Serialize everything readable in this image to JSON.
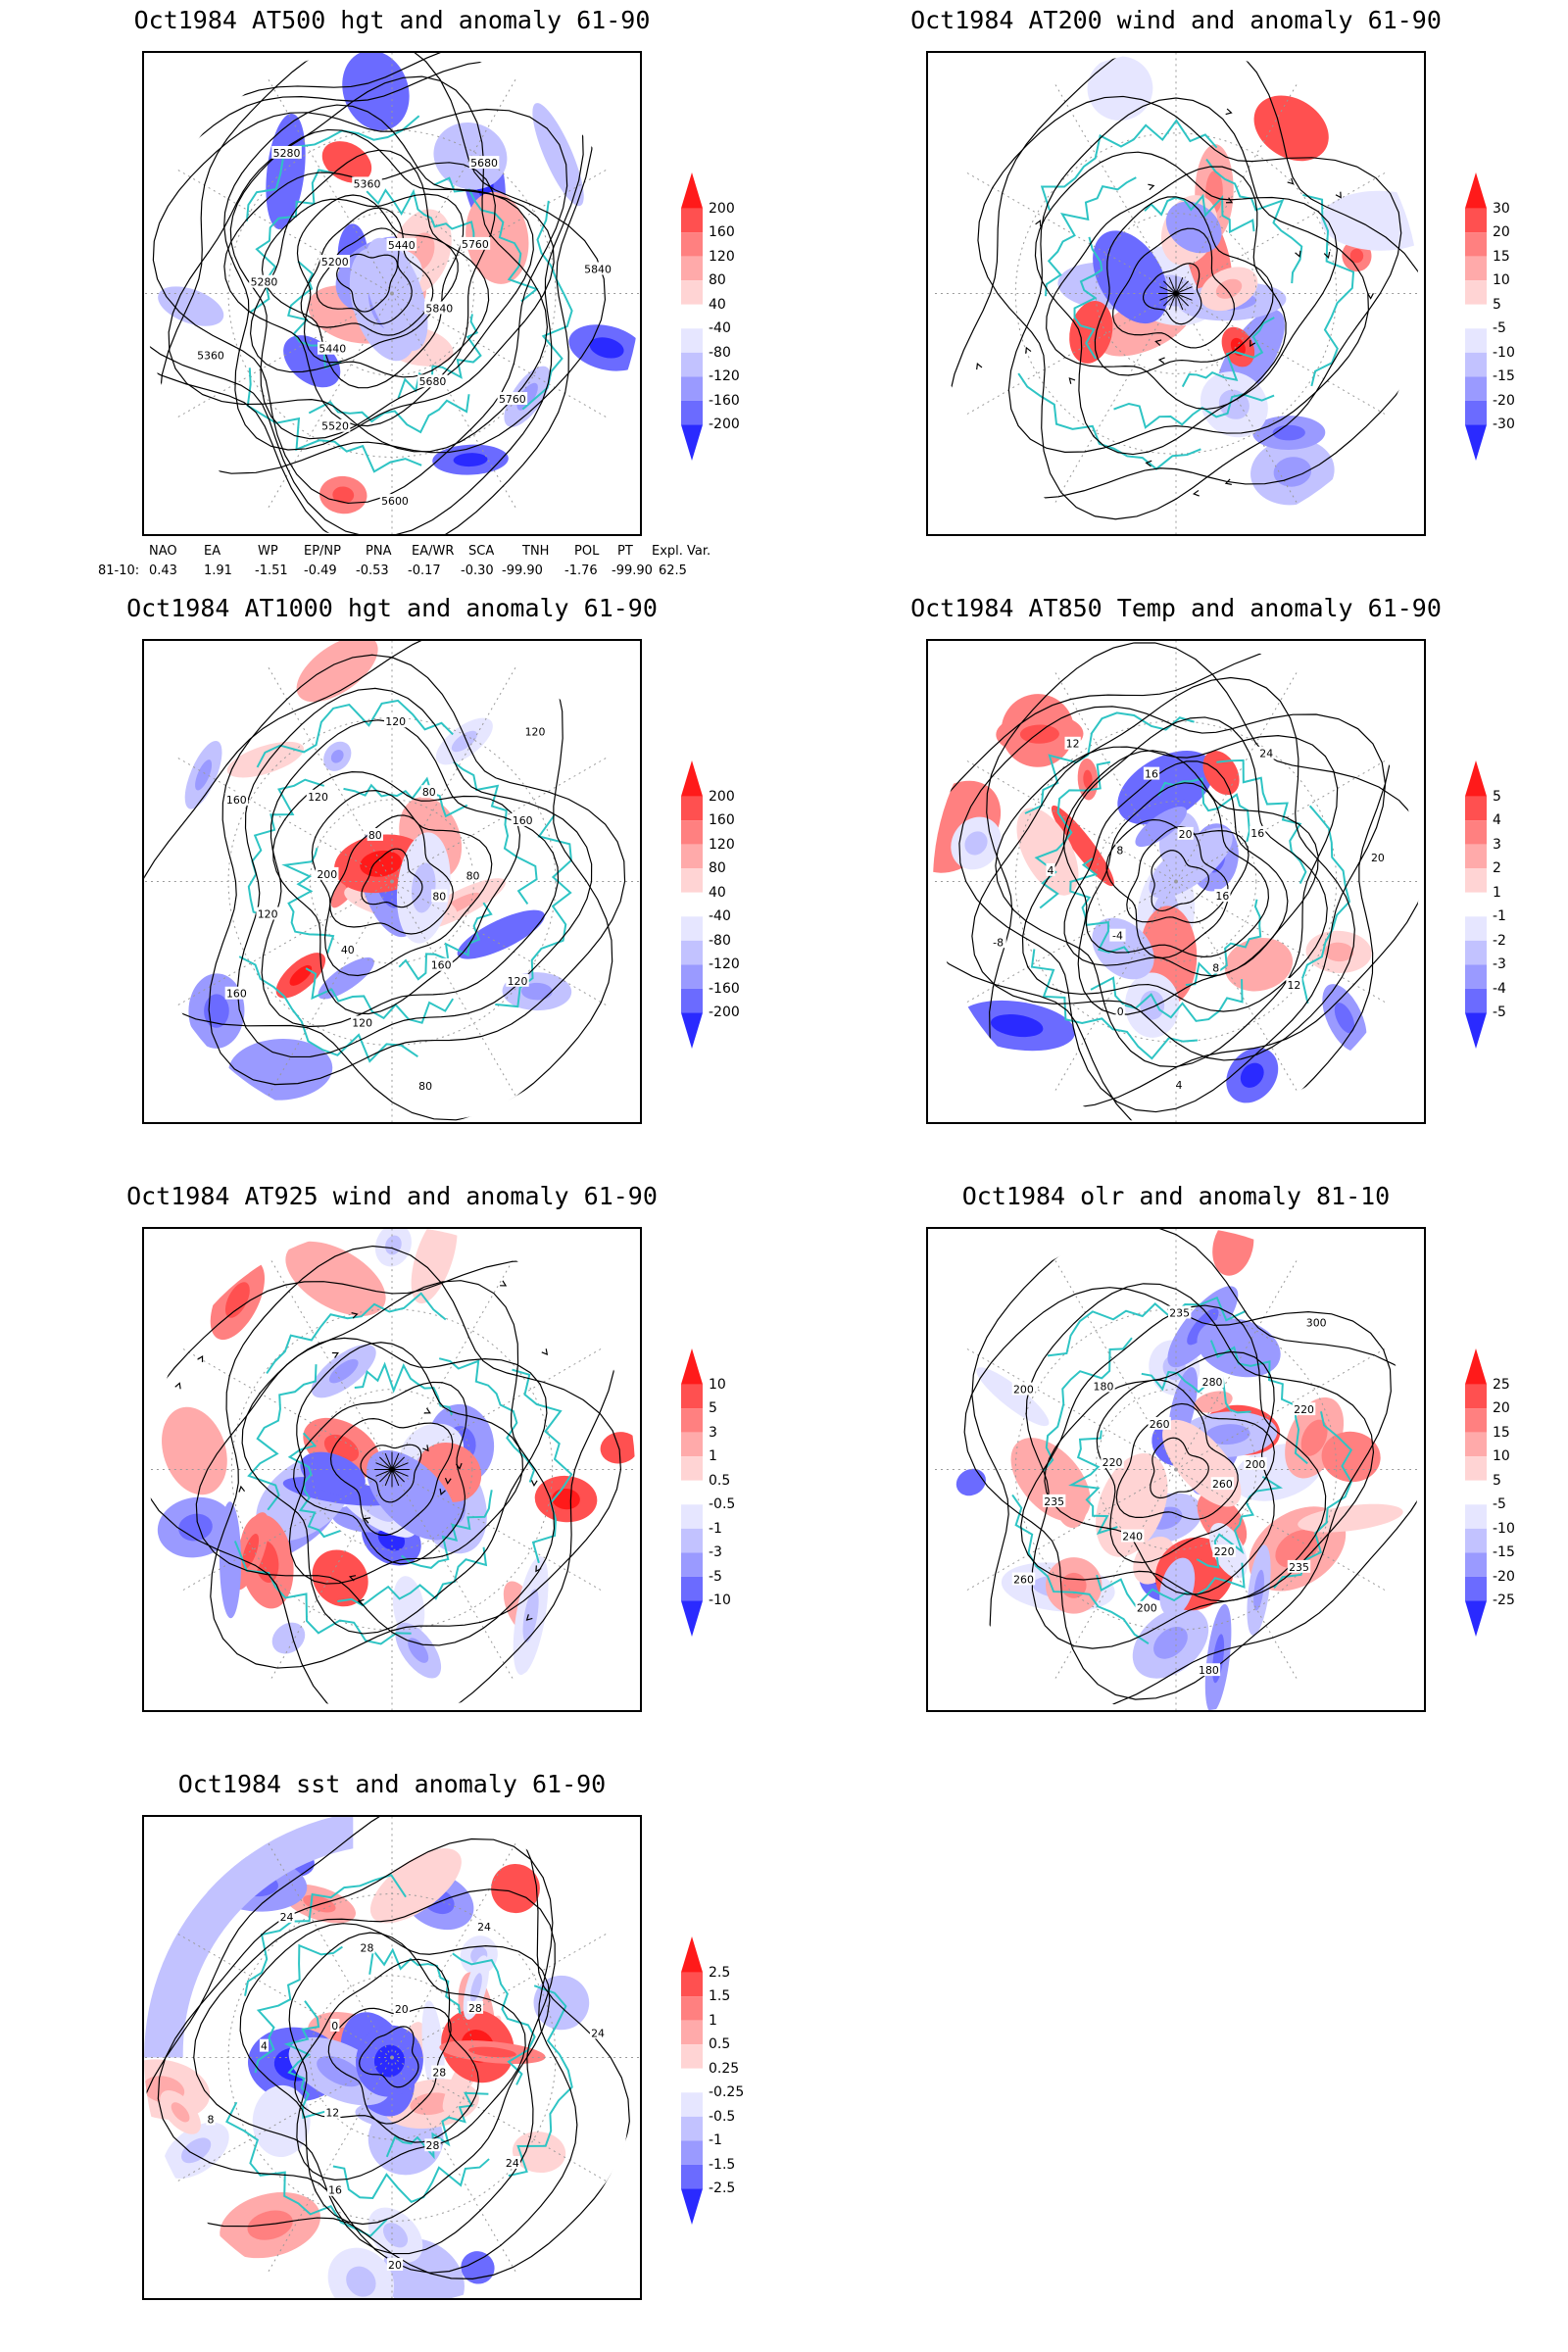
{
  "panels": [
    {
      "id": "at500",
      "title": "Oct1984 AT500 hgt and anomaly 61-90",
      "colorbar": [
        "200",
        "160",
        "120",
        "80",
        "40",
        "-40",
        "-80",
        "-120",
        "-160",
        "-200"
      ],
      "contour_labels": [
        "5840",
        "5760",
        "5680",
        "5600",
        "5520",
        "5440",
        "5360",
        "5280",
        "5200",
        "5280",
        "5360",
        "5440",
        "5680",
        "5760",
        "5840"
      ]
    },
    {
      "id": "at200",
      "title": "Oct1984 AT200 wind and anomaly 61-90",
      "colorbar": [
        "30",
        "20",
        "15",
        "10",
        "5",
        "-5",
        "-10",
        "-15",
        "-20",
        "-30"
      ],
      "contour_labels": []
    },
    {
      "id": "at1000",
      "title": "Oct1984 AT1000 hgt and anomaly 61-90",
      "colorbar": [
        "200",
        "160",
        "120",
        "80",
        "40",
        "-40",
        "-80",
        "-120",
        "-160",
        "-200"
      ],
      "contour_labels": [
        "80",
        "120",
        "160",
        "80",
        "120",
        "40",
        "160",
        "120",
        "200",
        "160",
        "120",
        "80",
        "120",
        "80",
        "120",
        "160",
        "80"
      ]
    },
    {
      "id": "at850",
      "title": "Oct1984 AT850 Temp and anomaly 61-90",
      "colorbar": [
        "5",
        "4",
        "3",
        "2",
        "1",
        "-1",
        "-2",
        "-3",
        "-4",
        "-5"
      ],
      "contour_labels": [
        "16",
        "12",
        "8",
        "4",
        "0",
        "-4",
        "-8",
        "4",
        "8",
        "12",
        "16",
        "20",
        "24",
        "16",
        "20"
      ]
    },
    {
      "id": "at925",
      "title": "Oct1984 AT925 wind and anomaly 61-90",
      "colorbar": [
        "10",
        "5",
        "3",
        "1",
        "0.5",
        "-0.5",
        "-1",
        "-3",
        "-5",
        "-10"
      ],
      "contour_labels": []
    },
    {
      "id": "olr",
      "title": "Oct1984 olr and anomaly 81-10",
      "colorbar": [
        "25",
        "20",
        "15",
        "10",
        "5",
        "-5",
        "-10",
        "-15",
        "-20",
        "-25"
      ],
      "contour_labels": [
        "260",
        "235",
        "220",
        "180",
        "200",
        "240",
        "260",
        "235",
        "220",
        "200",
        "180",
        "260",
        "235",
        "280",
        "300",
        "220",
        "200"
      ]
    },
    {
      "id": "sst",
      "title": "Oct1984 sst and anomaly 61-90",
      "colorbar": [
        "2.5",
        "1.5",
        "1",
        "0.5",
        "0.25",
        "-0.25",
        "-0.5",
        "-1",
        "-1.5",
        "-2.5"
      ],
      "contour_labels": [
        "28",
        "24",
        "28",
        "20",
        "16",
        "12",
        "8",
        "4",
        "0",
        "24",
        "28",
        "20",
        "24",
        "28",
        "24"
      ]
    }
  ],
  "index_table": {
    "headers": [
      "NAO",
      "EA",
      "WP",
      "EP/NP",
      "PNA",
      "EA/WR",
      "SCA",
      "TNH",
      "POL",
      "PT",
      "Expl. Var."
    ],
    "row_label": "81-10:",
    "values": [
      "0.43",
      "1.91",
      "-1.51",
      "-0.49",
      "-0.53",
      "-0.17",
      "-0.30",
      "-99.90",
      "-1.76",
      "-99.90",
      "62.5"
    ]
  },
  "colors": {
    "land_outline": "#2ec4c4",
    "contour": "#000000",
    "anom_pos": [
      "#ffd4d4",
      "#ffaaaa",
      "#ff8080",
      "#ff5050",
      "#ff1a1a"
    ],
    "anom_neg": [
      "#e6e6ff",
      "#c2c2ff",
      "#9a9aff",
      "#6b6bff",
      "#2a2aff"
    ]
  }
}
